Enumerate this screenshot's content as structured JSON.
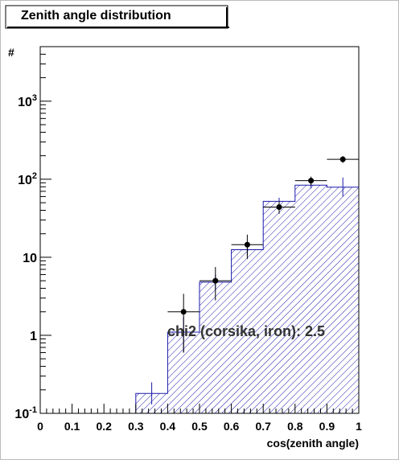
{
  "chart_data": {
    "type": "bar",
    "title": "Zenith angle distribution",
    "xlabel": "cos(zenith angle)",
    "ylabel": "#",
    "xlim": [
      0,
      1
    ],
    "ylim": [
      0.1,
      5000
    ],
    "yscale": "log",
    "grid": false,
    "x_ticks": [
      "0",
      "0.1",
      "0.2",
      "0.3",
      "0.4",
      "0.5",
      "0.6",
      "0.7",
      "0.8",
      "0.9",
      "1"
    ],
    "y_ticks": [
      {
        "value": 0.1,
        "base": "10",
        "exp": "-1"
      },
      {
        "value": 1,
        "base": "1",
        "exp": ""
      },
      {
        "value": 10,
        "base": "10",
        "exp": ""
      },
      {
        "value": 100,
        "base": "10",
        "exp": "2"
      },
      {
        "value": 1000,
        "base": "10",
        "exp": "3"
      }
    ],
    "annotation": "chi2 (corsika, iron): 2.5",
    "histogram": {
      "style": "hatched",
      "color": "#1a1aaa",
      "bins": [
        {
          "lo": 0.3,
          "hi": 0.4,
          "value": 0.18,
          "err_lo": 0.13,
          "err_hi": 0.25
        },
        {
          "lo": 0.4,
          "hi": 0.5,
          "value": 1.1,
          "err_lo": 0.6,
          "err_hi": 1.7
        },
        {
          "lo": 0.5,
          "hi": 0.6,
          "value": 4.8,
          "err_lo": 3.8,
          "err_hi": 6.0
        },
        {
          "lo": 0.6,
          "hi": 0.7,
          "value": 12.5,
          "err_lo": 10.5,
          "err_hi": 14.5
        },
        {
          "lo": 0.7,
          "hi": 0.8,
          "value": 52,
          "err_lo": 46,
          "err_hi": 58
        },
        {
          "lo": 0.8,
          "hi": 0.9,
          "value": 84,
          "err_lo": 76,
          "err_hi": 93
        },
        {
          "lo": 0.9,
          "hi": 1.0,
          "value": 79,
          "err_lo": 60,
          "err_hi": 105
        }
      ]
    },
    "points": {
      "color": "#000000",
      "data": [
        {
          "x": 0.45,
          "y": 2.0,
          "y_lo": 0.6,
          "y_hi": 3.4
        },
        {
          "x": 0.55,
          "y": 5.0,
          "y_lo": 2.8,
          "y_hi": 7.5
        },
        {
          "x": 0.65,
          "y": 14.5,
          "y_lo": 9.5,
          "y_hi": 19.5
        },
        {
          "x": 0.75,
          "y": 44,
          "y_lo": 36,
          "y_hi": 52
        },
        {
          "x": 0.85,
          "y": 96,
          "y_lo": 83,
          "y_hi": 108
        },
        {
          "x": 0.95,
          "y": 180,
          "y_lo": 162,
          "y_hi": 198
        }
      ]
    }
  }
}
